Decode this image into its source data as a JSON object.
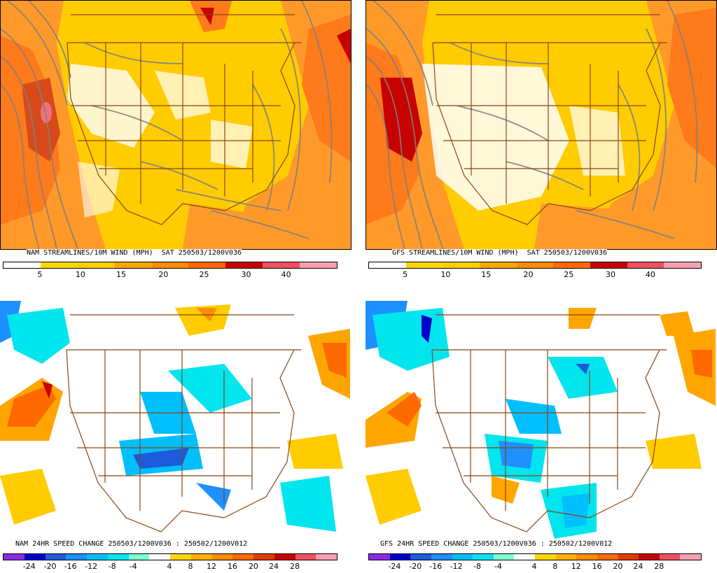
{
  "panels": [
    {
      "id": "nam-wind",
      "title": "NAM STREAMLINES/10M WIND (MPH)  SAT 250503/1200V036",
      "colorbar": {
        "colors": [
          "#ffffff",
          "#ffd700",
          "#ffcc00",
          "#ffa500",
          "#ff8c00",
          "#ff6a00",
          "#c70000",
          "#f05060",
          "#f7a0b0"
        ],
        "labels": [
          "5",
          "10",
          "15",
          "20",
          "25",
          "30",
          "40"
        ]
      }
    },
    {
      "id": "gfs-wind",
      "title": "GFS STREAMLINES/10M WIND (MPH)  SAT 250503/1200V036",
      "colorbar": {
        "colors": [
          "#ffffff",
          "#ffd700",
          "#ffcc00",
          "#ffa500",
          "#ff8c00",
          "#ff6a00",
          "#c70000",
          "#f05060",
          "#f7a0b0"
        ],
        "labels": [
          "5",
          "10",
          "15",
          "20",
          "25",
          "30",
          "40"
        ]
      }
    },
    {
      "id": "nam-change",
      "title": "NAM 24HR SPEED CHANGE 250503/1200V036 : 250502/1200V012",
      "colorbar": {
        "colors": [
          "#8a2be2",
          "#0000cd",
          "#1e5adc",
          "#1e90ff",
          "#00bfff",
          "#00e5ee",
          "#7fffd4",
          "#ffffff",
          "#ffd700",
          "#ffb000",
          "#ff8c00",
          "#ff6a00",
          "#e03c00",
          "#c70000",
          "#f05060",
          "#f7a0b0"
        ],
        "labels": [
          "-24",
          "-20",
          "-16",
          "-12",
          "-8",
          "-4",
          "4",
          "8",
          "12",
          "16",
          "20",
          "24",
          "28"
        ]
      }
    },
    {
      "id": "gfs-change",
      "title": "GFS 24HR SPEED CHANGE 250503/1200V036 : 250502/1200V012",
      "colorbar": {
        "colors": [
          "#8a2be2",
          "#0000cd",
          "#1e5adc",
          "#1e90ff",
          "#00bfff",
          "#00e5ee",
          "#7fffd4",
          "#ffffff",
          "#ffd700",
          "#ffb000",
          "#ff8c00",
          "#ff6a00",
          "#e03c00",
          "#c70000",
          "#f05060",
          "#f7a0b0"
        ],
        "labels": [
          "-24",
          "-20",
          "-16",
          "-12",
          "-8",
          "-4",
          "4",
          "8",
          "12",
          "16",
          "20",
          "24",
          "28"
        ]
      }
    }
  ],
  "colors": {
    "border_lines": "#8b4513",
    "streamlines": "#808080"
  }
}
